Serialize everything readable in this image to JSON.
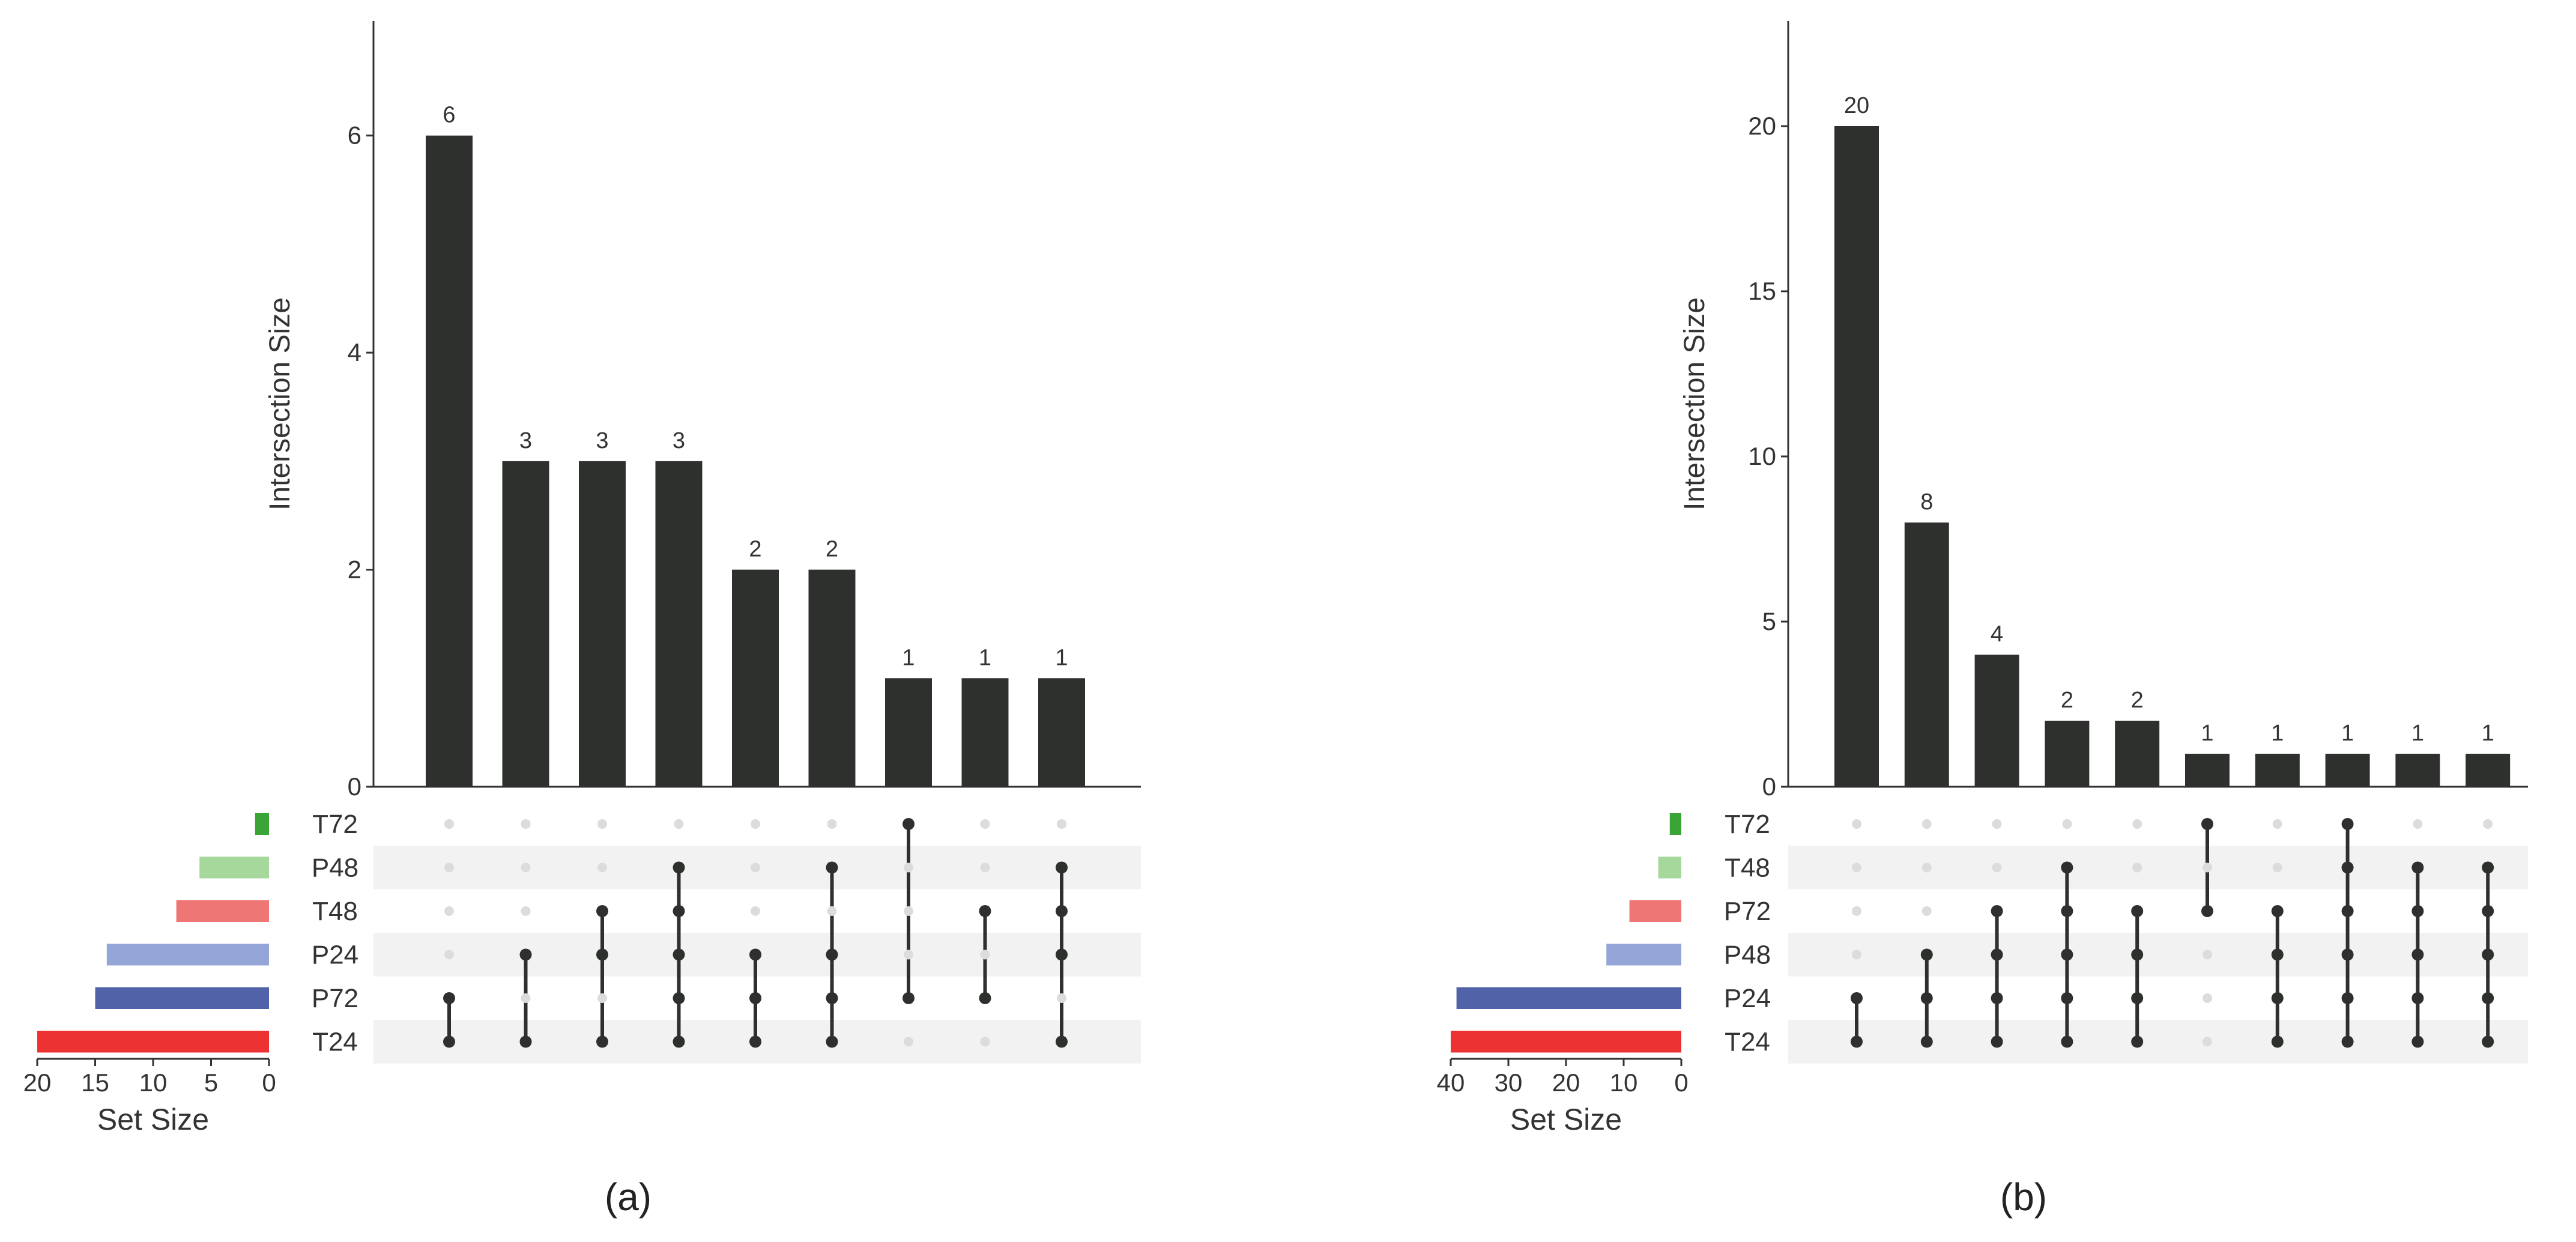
{
  "chart_data": [
    {
      "type": "upset",
      "panel_label": "(a)",
      "ylabel": "Intersection Size",
      "xlabel_sets": "Set Size",
      "ylim": [
        0,
        7
      ],
      "yticks": [
        0,
        2,
        4,
        6
      ],
      "set_size_ticks": [
        20,
        15,
        10,
        5,
        0
      ],
      "set_size_lim": [
        0,
        20
      ],
      "sets": [
        {
          "name": "T72",
          "size": 1.2,
          "color": "#3aa436"
        },
        {
          "name": "P48",
          "size": 6,
          "color": "#a6d89b"
        },
        {
          "name": "T48",
          "size": 8,
          "color": "#ee7775"
        },
        {
          "name": "P24",
          "size": 14,
          "color": "#94a6d8"
        },
        {
          "name": "P72",
          "size": 15,
          "color": "#5262a8"
        },
        {
          "name": "T24",
          "size": 20,
          "color": "#ec3232"
        }
      ],
      "intersections": [
        {
          "value": 6,
          "label": "6",
          "members": [
            "P72",
            "T24"
          ]
        },
        {
          "value": 3,
          "label": "3",
          "members": [
            "P24",
            "T24"
          ]
        },
        {
          "value": 3,
          "label": "3",
          "members": [
            "T48",
            "P24",
            "T24"
          ]
        },
        {
          "value": 3,
          "label": "3",
          "members": [
            "P48",
            "T48",
            "P24",
            "P72",
            "T24"
          ]
        },
        {
          "value": 2,
          "label": "2",
          "members": [
            "P24",
            "P72",
            "T24"
          ]
        },
        {
          "value": 2,
          "label": "2",
          "members": [
            "P48",
            "P24",
            "P72",
            "T24"
          ]
        },
        {
          "value": 1,
          "label": "1",
          "members": [
            "T72",
            "P72"
          ]
        },
        {
          "value": 1,
          "label": "1",
          "members": [
            "T48",
            "P72"
          ]
        },
        {
          "value": 1,
          "label": "1",
          "members": [
            "P48",
            "T48",
            "P24",
            "T24"
          ]
        }
      ]
    },
    {
      "type": "upset",
      "panel_label": "(b)",
      "ylabel": "Intersection Size",
      "xlabel_sets": "Set Size",
      "ylim": [
        0,
        23
      ],
      "yticks": [
        0,
        5,
        10,
        15,
        20
      ],
      "set_size_ticks": [
        40,
        30,
        20,
        10,
        0
      ],
      "set_size_lim": [
        0,
        40
      ],
      "sets": [
        {
          "name": "T72",
          "size": 2,
          "color": "#3aa436"
        },
        {
          "name": "T48",
          "size": 4,
          "color": "#a6d89b"
        },
        {
          "name": "P72",
          "size": 9,
          "color": "#ee7775"
        },
        {
          "name": "P48",
          "size": 13,
          "color": "#94a6d8"
        },
        {
          "name": "P24",
          "size": 39,
          "color": "#5262a8"
        },
        {
          "name": "T24",
          "size": 40,
          "color": "#ec3232"
        }
      ],
      "intersections": [
        {
          "value": 20,
          "label": "20",
          "members": [
            "P24",
            "T24"
          ]
        },
        {
          "value": 8,
          "label": "8",
          "members": [
            "P48",
            "P24",
            "T24"
          ]
        },
        {
          "value": 4,
          "label": "4",
          "members": [
            "P72",
            "P48",
            "P24",
            "T24"
          ]
        },
        {
          "value": 2,
          "label": "2",
          "members": [
            "T48",
            "P72",
            "P48",
            "P24",
            "T24"
          ]
        },
        {
          "value": 2,
          "label": "2",
          "members": [
            "P72",
            "P48",
            "P24",
            "T24"
          ]
        },
        {
          "value": 1,
          "label": "1",
          "members": [
            "T72",
            "P72"
          ]
        },
        {
          "value": 1,
          "label": "1",
          "members": [
            "P72",
            "P48",
            "P24",
            "T24"
          ]
        },
        {
          "value": 1,
          "label": "1",
          "members": [
            "T72",
            "T48",
            "P72",
            "P48",
            "P24",
            "T24"
          ]
        },
        {
          "value": 1,
          "label": "1",
          "members": [
            "T48",
            "P72",
            "P48",
            "P24",
            "T24"
          ]
        },
        {
          "value": 1,
          "label": "1",
          "members": [
            "T48",
            "P72",
            "P48",
            "P24",
            "T24"
          ]
        }
      ]
    }
  ],
  "colors": {
    "bar": "#2d302d",
    "axis": "#333333",
    "dot_active": "#2d302d",
    "dot_inactive": "#dcdcdc",
    "stripe": "#f2f2f2"
  }
}
